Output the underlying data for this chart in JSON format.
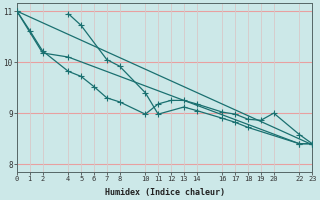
{
  "background_color": "#cce8e8",
  "grid_color_h": "#e8a0a0",
  "grid_color_v": "#d8c8c8",
  "line_color": "#1a7070",
  "xlabel": "Humidex (Indice chaleur)",
  "xlim": [
    0,
    23
  ],
  "ylim": [
    7.85,
    11.15
  ],
  "yticks": [
    8,
    9,
    10,
    11
  ],
  "xticks": [
    0,
    1,
    2,
    4,
    5,
    6,
    7,
    8,
    10,
    11,
    12,
    13,
    14,
    16,
    17,
    18,
    19,
    20,
    22,
    23
  ],
  "line1_x": [
    0,
    1,
    2,
    4,
    5,
    6,
    7,
    8,
    10,
    11,
    12,
    13,
    14,
    16,
    17,
    18,
    19,
    20,
    22,
    23
  ],
  "line1_y": [
    11.0,
    10.62,
    10.22,
    9.82,
    9.72,
    9.52,
    9.3,
    9.22,
    8.98,
    9.18,
    9.25,
    9.25,
    9.18,
    9.02,
    8.98,
    8.88,
    8.86,
    9.0,
    8.58,
    8.4
  ],
  "line2_x": [
    0,
    2,
    4,
    22,
    23
  ],
  "line2_y": [
    11.0,
    10.18,
    10.1,
    8.4,
    8.4
  ],
  "line3_x": [
    4,
    5,
    7,
    8,
    10,
    11,
    13,
    14,
    16,
    17,
    18,
    22,
    23
  ],
  "line3_y": [
    10.95,
    10.72,
    10.05,
    9.92,
    9.4,
    8.98,
    9.12,
    9.05,
    8.9,
    8.82,
    8.72,
    8.4,
    8.4
  ],
  "line4_x": [
    0,
    23
  ],
  "line4_y": [
    11.0,
    8.38
  ]
}
